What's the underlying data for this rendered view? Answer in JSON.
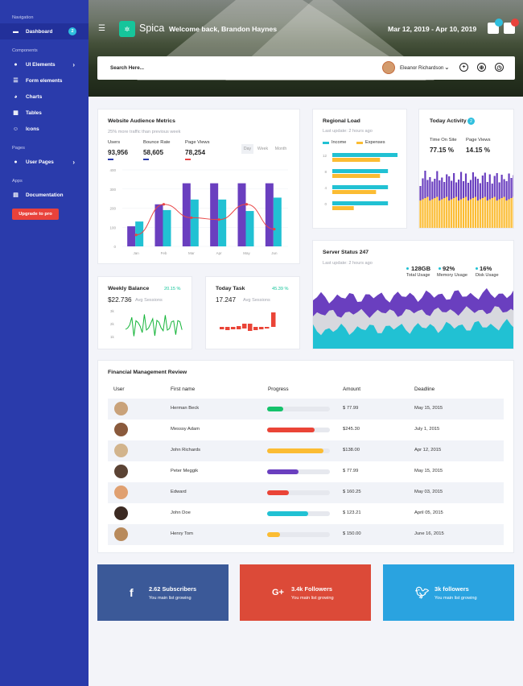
{
  "sidebar": {
    "section_navigation": "Navigation",
    "dashboard": "Dashboard",
    "dashboard_badge": "2",
    "section_components": "Components",
    "ui_elements": "UI Elements",
    "form_elements": "Form elements",
    "charts": "Charts",
    "tables": "Tables",
    "icons": "Icons",
    "section_pages": "Pages",
    "user_pages": "User Pages",
    "section_apps": "Apps",
    "documentation": "Documentation",
    "upgrade": "Upgrade to pro"
  },
  "header": {
    "logo": "Spica",
    "welcome": "Welcome back, Brandon Haynes",
    "date_range": "Mar 12, 2019 - Apr 10, 2019",
    "search_placeholder": "Search Here...",
    "user_name": "Eleanor Richardson"
  },
  "audience": {
    "title": "Website Audience Metrics",
    "subtitle": "25% more traffic than previous week",
    "users_label": "Users",
    "users_value": "93,956",
    "bounce_label": "Bounce Rate",
    "bounce_value": "58,605",
    "pageviews_label": "Page Views",
    "pageviews_value": "78,254",
    "seg_day": "Day",
    "seg_week": "Week",
    "seg_month": "Month",
    "colors": {
      "purple": "#6a3fbf",
      "teal": "#21c1d3",
      "line": "#e94546"
    }
  },
  "regional": {
    "title": "Regional Load",
    "subtitle": "Last update: 2 hours ago",
    "legend_income": "Income",
    "legend_expenses": "Expenses"
  },
  "activity": {
    "title": "Today Activity",
    "badge": "2",
    "time_label": "Time On Site",
    "time_value": "77.15 %",
    "views_label": "Page Views",
    "views_value": "14.15 %"
  },
  "server": {
    "title": "Server Status 247",
    "subtitle": "Last update: 2 hours ago",
    "total_value": "128GB",
    "total_label": "Total Usage",
    "memory_value": "92%",
    "memory_label": "Memory Usage",
    "disk_value": "16%",
    "disk_label": "Disk Usage"
  },
  "weekly": {
    "title": "Weekly Balance",
    "change": "20.15 %",
    "value": "$22.736",
    "sub": "Avg Sessions",
    "ticks": [
      "3k",
      "2k",
      "1k"
    ]
  },
  "task": {
    "title": "Today Task",
    "change": "45.39 %",
    "value": "17.247",
    "sub": "Avg Sessions"
  },
  "finance": {
    "title": "Financial Management Review",
    "columns": [
      "User",
      "First name",
      "Progress",
      "Amount",
      "Deadline"
    ],
    "rows": [
      {
        "name": "Herman Beck",
        "progress": 25,
        "color": "#15c26b",
        "amount": "$ 77.99",
        "deadline": "May 15, 2015"
      },
      {
        "name": "Messsy Adam",
        "progress": 75,
        "color": "#ea4437",
        "amount": "$245.30",
        "deadline": "July 1, 2015"
      },
      {
        "name": "John Richards",
        "progress": 90,
        "color": "#fbbc33",
        "amount": "$138.00",
        "deadline": "Apr 12, 2015"
      },
      {
        "name": "Peter Meggik",
        "progress": 50,
        "color": "#6a3fbf",
        "amount": "$ 77.99",
        "deadline": "May 15, 2015"
      },
      {
        "name": "Edward",
        "progress": 35,
        "color": "#ea4437",
        "amount": "$ 160.25",
        "deadline": "May 03, 2015"
      },
      {
        "name": "John Doe",
        "progress": 65,
        "color": "#21c1d3",
        "amount": "$ 123.21",
        "deadline": "April 05, 2015"
      },
      {
        "name": "Henry Tom",
        "progress": 20,
        "color": "#fbbc33",
        "amount": "$ 150.00",
        "deadline": "June 16, 2015"
      }
    ]
  },
  "social": {
    "facebook_title": "2.62 Subscribers",
    "facebook_sub": "You main list growing",
    "google_title": "3.4k Followers",
    "google_sub": "You main list growing",
    "twitter_title": "3k followers",
    "twitter_sub": "You main list growing"
  },
  "chart_data": [
    {
      "type": "bar",
      "categories": [
        "Jan",
        "Feb",
        "Mar",
        "Apr",
        "May",
        "Jun"
      ],
      "series": [
        {
          "values": [
            105,
            220,
            330,
            330,
            330,
            330
          ]
        },
        {
          "values": [
            130,
            190,
            245,
            245,
            185,
            255
          ]
        },
        {
          "values": [
            60,
            220,
            150,
            140,
            220,
            90
          ]
        }
      ],
      "ylim": [
        0,
        400
      ],
      "yticks": [
        400,
        300,
        200,
        100,
        0
      ]
    },
    {
      "type": "bar",
      "orientation": "horizontal",
      "categories": [
        "12",
        "8",
        "4",
        "0"
      ],
      "series": [
        {
          "name": "Income",
          "values": [
            8.2,
            7.0,
            7.0,
            7.0
          ]
        },
        {
          "name": "Expenses",
          "values": [
            6.0,
            6.0,
            5.5,
            2.7
          ]
        }
      ],
      "xlim": [
        0,
        8.5
      ]
    }
  ]
}
